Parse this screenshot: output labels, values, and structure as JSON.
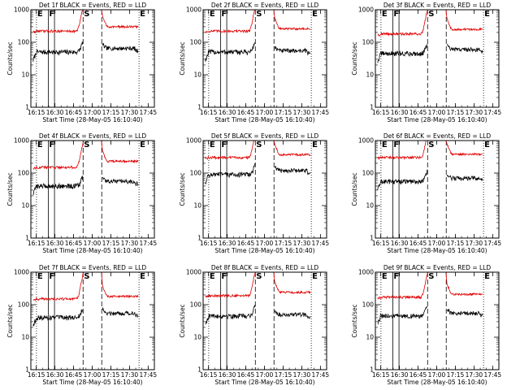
{
  "figure": {
    "xlabel": "Start Time (28-May-05 16:10:40)",
    "ylabel": "Counts/sec",
    "x_ticks": [
      "16:15",
      "16:30",
      "16:45",
      "17:00",
      "17:15",
      "17:30",
      "17:45"
    ],
    "y_ticks": [
      "1",
      "10",
      "100",
      "1000"
    ],
    "markers": [
      {
        "label": "E",
        "t": 4.5,
        "style": "dotted"
      },
      {
        "label": "F",
        "t": 14,
        "style": "solid"
      },
      {
        "label": "F2",
        "t": 19,
        "style": "solid"
      },
      {
        "label": "S",
        "t": 42,
        "style": "dashed"
      },
      {
        "label": "S2",
        "t": 57,
        "style": "dashed"
      },
      {
        "label": "E2",
        "t": 87,
        "style": "dotted"
      }
    ],
    "marker_labels": {
      "E": "E",
      "F": "F",
      "S": "S",
      "E2": "E"
    },
    "colors": {
      "events": "#000000",
      "lld": "#e00000"
    }
  },
  "chart_data": [
    {
      "type": "line",
      "title": "Det 1f BLACK = Events, RED = LLD",
      "xlim": [
        "16:10:40",
        "17:50:00"
      ],
      "ylim": [
        1,
        1000
      ],
      "yscale": "log",
      "series": [
        {
          "name": "Events",
          "color": "#000000",
          "level_before": 50,
          "level_after": 65
        },
        {
          "name": "LLD",
          "color": "#e00000",
          "level_before": 220,
          "level_after": 300
        }
      ]
    },
    {
      "type": "line",
      "title": "Det 2f BLACK = Events, RED = LLD",
      "xlim": [
        "16:10:40",
        "17:50:00"
      ],
      "ylim": [
        1,
        1000
      ],
      "yscale": "log",
      "series": [
        {
          "name": "Events",
          "color": "#000000",
          "level_before": 50,
          "level_after": 55
        },
        {
          "name": "LLD",
          "color": "#e00000",
          "level_before": 220,
          "level_after": 260
        }
      ]
    },
    {
      "type": "line",
      "title": "Det 3f BLACK = Events, RED = LLD",
      "xlim": [
        "16:10:40",
        "17:50:00"
      ],
      "ylim": [
        1,
        1000
      ],
      "yscale": "log",
      "series": [
        {
          "name": "Events",
          "color": "#000000",
          "level_before": 45,
          "level_after": 60
        },
        {
          "name": "LLD",
          "color": "#e00000",
          "level_before": 180,
          "level_after": 250
        }
      ]
    },
    {
      "type": "line",
      "title": "Det 4f BLACK = Events, RED = LLD",
      "xlim": [
        "16:10:40",
        "17:50:00"
      ],
      "ylim": [
        1,
        1000
      ],
      "yscale": "log",
      "series": [
        {
          "name": "Events",
          "color": "#000000",
          "level_before": 40,
          "level_after": 55
        },
        {
          "name": "LLD",
          "color": "#e00000",
          "level_before": 150,
          "level_after": 230
        }
      ]
    },
    {
      "type": "line",
      "title": "Det 5f BLACK = Events, RED = LLD",
      "xlim": [
        "16:10:40",
        "17:50:00"
      ],
      "ylim": [
        1,
        1000
      ],
      "yscale": "log",
      "series": [
        {
          "name": "Events",
          "color": "#000000",
          "level_before": 90,
          "level_after": 120
        },
        {
          "name": "LLD",
          "color": "#e00000",
          "level_before": 300,
          "level_after": 370
        }
      ]
    },
    {
      "type": "line",
      "title": "Det 6f BLACK = Events, RED = LLD",
      "xlim": [
        "16:10:40",
        "17:50:00"
      ],
      "ylim": [
        1,
        1000
      ],
      "yscale": "log",
      "series": [
        {
          "name": "Events",
          "color": "#000000",
          "level_before": 55,
          "level_after": 70
        },
        {
          "name": "LLD",
          "color": "#e00000",
          "level_before": 300,
          "level_after": 380
        }
      ]
    },
    {
      "type": "line",
      "title": "Det 7f BLACK = Events, RED = LLD",
      "xlim": [
        "16:10:40",
        "17:50:00"
      ],
      "ylim": [
        1,
        1000
      ],
      "yscale": "log",
      "series": [
        {
          "name": "Events",
          "color": "#000000",
          "level_before": 40,
          "level_after": 55
        },
        {
          "name": "LLD",
          "color": "#e00000",
          "level_before": 150,
          "level_after": 180
        }
      ]
    },
    {
      "type": "line",
      "title": "Det 8f BLACK = Events, RED = LLD",
      "xlim": [
        "16:10:40",
        "17:50:00"
      ],
      "ylim": [
        1,
        1000
      ],
      "yscale": "log",
      "series": [
        {
          "name": "Events",
          "color": "#000000",
          "level_before": 45,
          "level_after": 50
        },
        {
          "name": "LLD",
          "color": "#e00000",
          "level_before": 190,
          "level_after": 240
        }
      ]
    },
    {
      "type": "line",
      "title": "Det 9f BLACK = Events, RED = LLD",
      "xlim": [
        "16:10:40",
        "17:50:00"
      ],
      "ylim": [
        1,
        1000
      ],
      "yscale": "log",
      "series": [
        {
          "name": "Events",
          "color": "#000000",
          "level_before": 45,
          "level_after": 55
        },
        {
          "name": "LLD",
          "color": "#e00000",
          "level_before": 170,
          "level_after": 210
        }
      ]
    }
  ]
}
